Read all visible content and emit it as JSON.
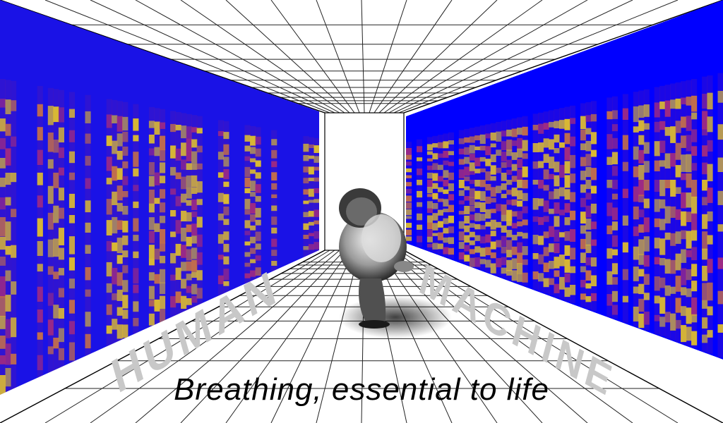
{
  "caption": "Breathing, essential to life",
  "labels": {
    "left_wall": "HUMAN",
    "right_wall": "MACHINE"
  },
  "colors": {
    "spectrogram_background": "#0000ff",
    "spectrogram_mid": "#7a1fa0",
    "spectrogram_high": "#ffee00",
    "grid_lines": "#222222",
    "label_gray": "#c8c8c8"
  }
}
